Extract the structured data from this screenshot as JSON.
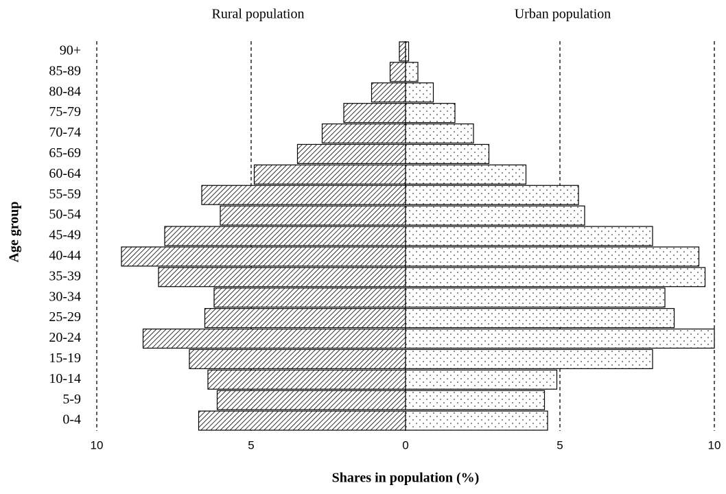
{
  "chart_data": {
    "type": "pyramid",
    "x_label": "Shares in population (%)",
    "y_label": "Age group",
    "categories": [
      "0-4",
      "5-9",
      "10-14",
      "15-19",
      "20-24",
      "25-29",
      "30-34",
      "35-39",
      "40-44",
      "45-49",
      "50-54",
      "55-59",
      "60-64",
      "65-69",
      "70-74",
      "75-79",
      "80-84",
      "85-89",
      "90+"
    ],
    "series": [
      {
        "name": "Rural population",
        "color": "#000000",
        "pattern": "hatch",
        "values": [
          -6.7,
          -6.1,
          -6.4,
          -7.0,
          -8.5,
          -6.5,
          -6.2,
          -8.0,
          -9.2,
          -7.8,
          -6.0,
          -6.6,
          -4.9,
          -3.5,
          -2.7,
          -2.0,
          -1.1,
          -0.5,
          -0.2
        ]
      },
      {
        "name": "Urban population",
        "color": "#000000",
        "pattern": "dots",
        "values": [
          4.6,
          4.5,
          4.9,
          8.0,
          10.0,
          8.7,
          8.4,
          9.7,
          9.5,
          8.0,
          5.8,
          5.6,
          3.9,
          2.7,
          2.2,
          1.6,
          0.9,
          0.4,
          0.1
        ]
      }
    ],
    "xlim": [
      -10,
      10
    ],
    "xticks": [
      {
        "value": -10,
        "label": "10"
      },
      {
        "value": -5,
        "label": "5"
      },
      0,
      5,
      10
    ],
    "grid": true
  }
}
